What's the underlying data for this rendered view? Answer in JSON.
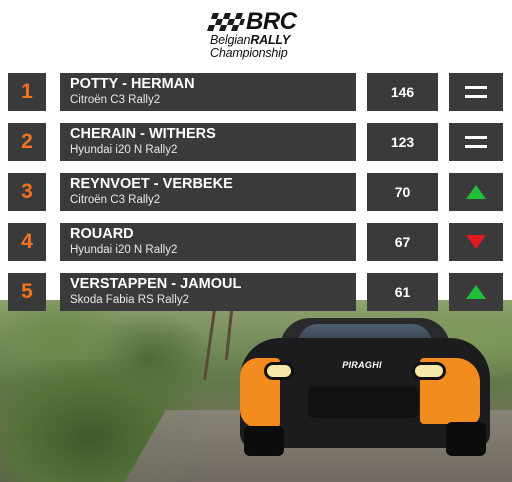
{
  "header": {
    "logo_brand": "BRC",
    "logo_line2_prefix": "Belgian",
    "logo_line2_bold": "RALLY",
    "logo_line3": "Championship"
  },
  "standings": [
    {
      "position": "1",
      "crew": "POTTY - HERMAN",
      "car": "Citroën C3 Rally2",
      "points": "146",
      "trend": "same",
      "trend_icon": "equals-icon"
    },
    {
      "position": "2",
      "crew": "CHERAIN - WITHERS",
      "car": "Hyundai i20 N Rally2",
      "points": "123",
      "trend": "same",
      "trend_icon": "equals-icon"
    },
    {
      "position": "3",
      "crew": "REYNVOET - VERBEKE",
      "car": "Citroën C3 Rally2",
      "points": "70",
      "trend": "up",
      "trend_icon": "arrow-up-icon"
    },
    {
      "position": "4",
      "crew": "ROUARD",
      "car": "Hyundai i20 N Rally2",
      "points": "67",
      "trend": "down",
      "trend_icon": "arrow-down-icon"
    },
    {
      "position": "5",
      "crew": "VERSTAPPEN - JAMOUL",
      "car": "Skoda Fabia RS Rally2",
      "points": "61",
      "trend": "up",
      "trend_icon": "arrow-up-icon"
    }
  ],
  "photo": {
    "sponsor_text": "PIRAGHI"
  },
  "colors": {
    "position_accent": "#f2731f",
    "box_bg": "#3a3a3a",
    "up": "#1fbf3a",
    "down": "#e0191f",
    "logo_accent": "#e30613"
  }
}
